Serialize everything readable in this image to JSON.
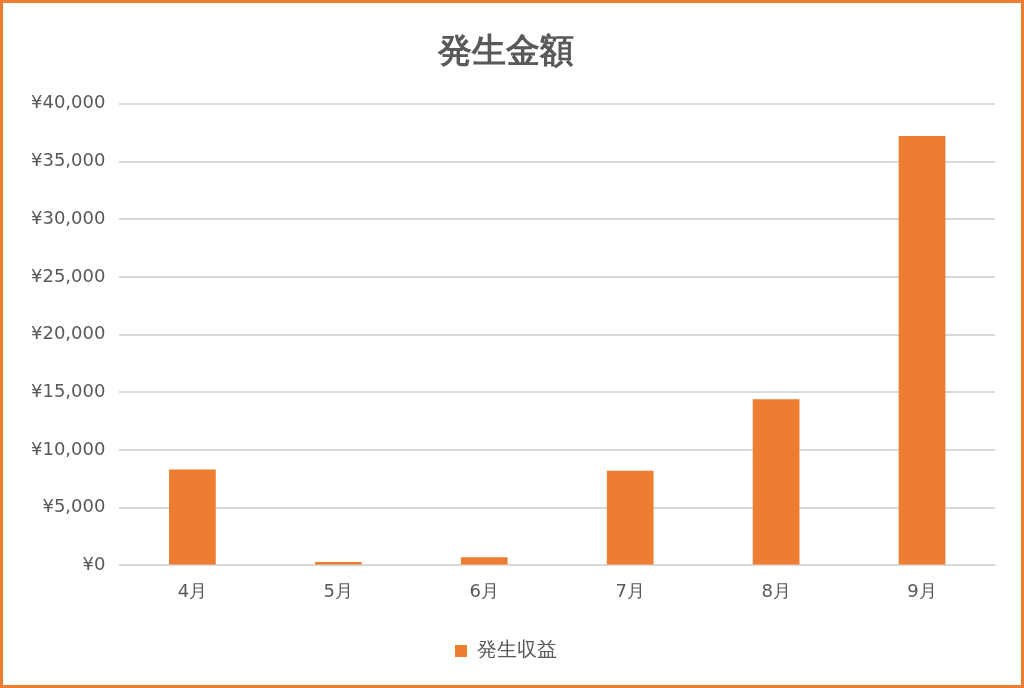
{
  "chart_data": {
    "type": "bar",
    "title": "発生金額",
    "categories": [
      "4月",
      "5月",
      "6月",
      "7月",
      "8月",
      "9月"
    ],
    "series": [
      {
        "name": "発生収益",
        "color": "#ed7d31",
        "values": [
          8300,
          300,
          700,
          8200,
          14400,
          37200
        ]
      }
    ],
    "ylim": [
      0,
      40000
    ],
    "yticks": [
      {
        "value": 0,
        "label": "¥0"
      },
      {
        "value": 5000,
        "label": "¥5,000"
      },
      {
        "value": 10000,
        "label": "¥10,000"
      },
      {
        "value": 15000,
        "label": "¥15,000"
      },
      {
        "value": 20000,
        "label": "¥20,000"
      },
      {
        "value": 25000,
        "label": "¥25,000"
      },
      {
        "value": 30000,
        "label": "¥30,000"
      },
      {
        "value": 35000,
        "label": "¥35,000"
      },
      {
        "value": 40000,
        "label": "¥40,000"
      }
    ],
    "grid": "y",
    "legend": "bottom"
  }
}
